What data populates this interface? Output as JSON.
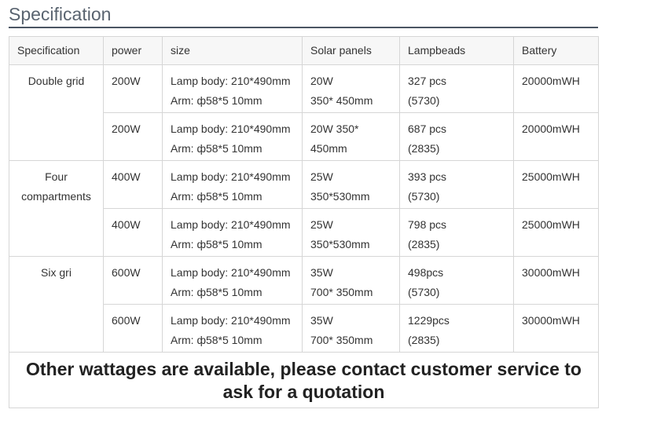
{
  "heading": "Specification",
  "table": {
    "headers": [
      "Specification",
      "power",
      "size",
      "Solar panels",
      "Lampbeads",
      "Battery"
    ],
    "groups": [
      {
        "spec": [
          "Double grid"
        ],
        "rows": [
          {
            "power": "200W",
            "size": [
              "Lamp body: 210*490mm",
              "Arm: ф58*5 10mm"
            ],
            "solar": [
              "20W",
              "350* 450mm"
            ],
            "lamp": [
              "327 pcs",
              "(5730)"
            ],
            "battery": "20000mWH"
          },
          {
            "power": "200W",
            "size": [
              "Lamp body: 210*490mm",
              "Arm: ф58*5 10mm"
            ],
            "solar": [
              "20W 350*",
              "450mm"
            ],
            "lamp": [
              "687 pcs",
              "(2835)"
            ],
            "battery": "20000mWH"
          }
        ]
      },
      {
        "spec": [
          "Four",
          "compartments"
        ],
        "rows": [
          {
            "power": "400W",
            "size": [
              "Lamp body: 210*490mm",
              "Arm: ф58*5 10mm"
            ],
            "solar": [
              "25W",
              "350*530mm"
            ],
            "lamp": [
              "393 pcs",
              "(5730)"
            ],
            "battery": "25000mWH"
          },
          {
            "power": "400W",
            "size": [
              "Lamp body: 210*490mm",
              "Arm: ф58*5 10mm"
            ],
            "solar": [
              "25W",
              "350*530mm"
            ],
            "lamp": [
              "798 pcs",
              "(2835)"
            ],
            "battery": "25000mWH"
          }
        ]
      },
      {
        "spec": [
          "Six gri"
        ],
        "rows": [
          {
            "power": "600W",
            "size": [
              "Lamp body: 210*490mm",
              "Arm: ф58*5 10mm"
            ],
            "solar": [
              "35W",
              "700* 350mm"
            ],
            "lamp": [
              "498pcs",
              "(5730)"
            ],
            "battery": "30000mWH"
          },
          {
            "power": "600W",
            "size": [
              "Lamp body: 210*490mm",
              "Arm: ф58*5 10mm"
            ],
            "solar": [
              "35W",
              "700* 350mm"
            ],
            "lamp": [
              "1229pcs",
              "(2835)"
            ],
            "battery": "30000mWH"
          }
        ]
      }
    ],
    "footer": "Other wattages are available, please contact customer service to ask for a quotation"
  }
}
